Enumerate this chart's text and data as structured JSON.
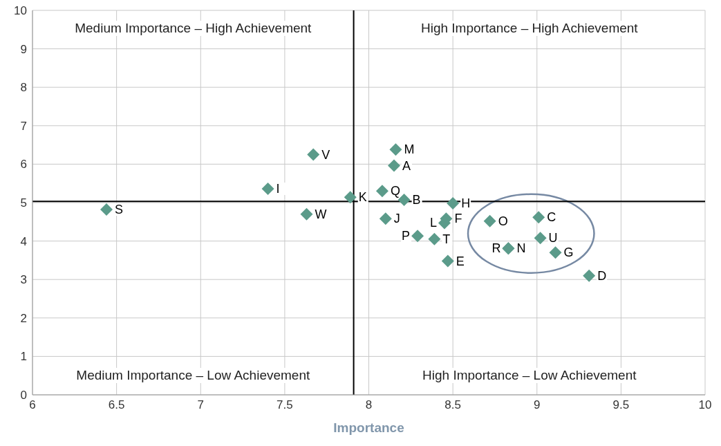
{
  "chart_data": {
    "type": "scatter",
    "xlabel": "Importance",
    "xlim": [
      6,
      10
    ],
    "xticks": [
      6,
      6.5,
      7,
      7.5,
      8,
      8.5,
      9,
      9.5,
      10
    ],
    "ylim": [
      0,
      10
    ],
    "yticks": [
      0,
      1,
      2,
      3,
      4,
      5,
      6,
      7,
      8,
      9,
      10
    ],
    "grid": true,
    "marker": "diamond",
    "legend": false,
    "ref_lines": [
      {
        "axis": "x",
        "value": 7.91,
        "color": "#000000"
      },
      {
        "axis": "y",
        "value": 5.03,
        "color": "#000000"
      }
    ],
    "annotations": [
      "Medium Importance – High Achievement",
      "High Importance – High Achievement",
      "Medium Importance – Low Achievement",
      "High Importance – Low Achievement"
    ],
    "series": [
      {
        "name": "S",
        "color": "#5b9b8a",
        "x": [
          6.44
        ],
        "values": [
          4.82
        ]
      },
      {
        "name": "I",
        "color": "#5b9b8a",
        "x": [
          7.4
        ],
        "values": [
          5.36
        ]
      },
      {
        "name": "V",
        "color": "#5b9b8a",
        "x": [
          7.67
        ],
        "values": [
          6.25
        ]
      },
      {
        "name": "W",
        "color": "#5b9b8a",
        "x": [
          7.63
        ],
        "values": [
          4.7
        ]
      },
      {
        "name": "K",
        "color": "#5b9b8a",
        "x": [
          7.89
        ],
        "values": [
          5.14
        ]
      },
      {
        "name": "M",
        "color": "#5b9b8a",
        "x": [
          8.16
        ],
        "values": [
          6.38
        ]
      },
      {
        "name": "A",
        "color": "#5b9b8a",
        "x": [
          8.15
        ],
        "values": [
          5.96
        ]
      },
      {
        "name": "Q",
        "color": "#5b9b8a",
        "x": [
          8.08
        ],
        "values": [
          5.3
        ]
      },
      {
        "name": "B",
        "color": "#5b9b8a",
        "x": [
          8.21
        ],
        "values": [
          5.07
        ]
      },
      {
        "name": "J",
        "color": "#5b9b8a",
        "x": [
          8.1
        ],
        "values": [
          4.58
        ]
      },
      {
        "name": "H",
        "color": "#5b9b8a",
        "x": [
          8.5
        ],
        "values": [
          4.98
        ]
      },
      {
        "name": "F",
        "color": "#5b9b8a",
        "x": [
          8.46
        ],
        "values": [
          4.58
        ]
      },
      {
        "name": "L",
        "color": "#5b9b8a",
        "x": [
          8.45
        ],
        "values": [
          4.47
        ]
      },
      {
        "name": "T",
        "color": "#5b9b8a",
        "x": [
          8.39
        ],
        "values": [
          4.05
        ]
      },
      {
        "name": "P",
        "color": "#5b9b8a",
        "x": [
          8.29
        ],
        "values": [
          4.13
        ]
      },
      {
        "name": "E",
        "color": "#5b9b8a",
        "x": [
          8.47
        ],
        "values": [
          3.48
        ]
      },
      {
        "name": "O",
        "color": "#5b9b8a",
        "x": [
          8.72
        ],
        "values": [
          4.52
        ]
      },
      {
        "name": "C",
        "color": "#5b9b8a",
        "x": [
          9.01
        ],
        "values": [
          4.62
        ]
      },
      {
        "name": "U",
        "color": "#5b9b8a",
        "x": [
          9.02
        ],
        "values": [
          4.08
        ]
      },
      {
        "name": "N",
        "color": "#5b9b8a",
        "x": [
          8.83
        ],
        "values": [
          3.81
        ]
      },
      {
        "name": "R",
        "color": "#5b9b8a",
        "x": [
          8.83
        ],
        "values": [
          3.81
        ]
      },
      {
        "name": "G",
        "color": "#5b9b8a",
        "x": [
          9.11
        ],
        "values": [
          3.7
        ]
      },
      {
        "name": "D",
        "color": "#5b9b8a",
        "x": [
          9.31
        ],
        "values": [
          3.1
        ]
      }
    ]
  }
}
